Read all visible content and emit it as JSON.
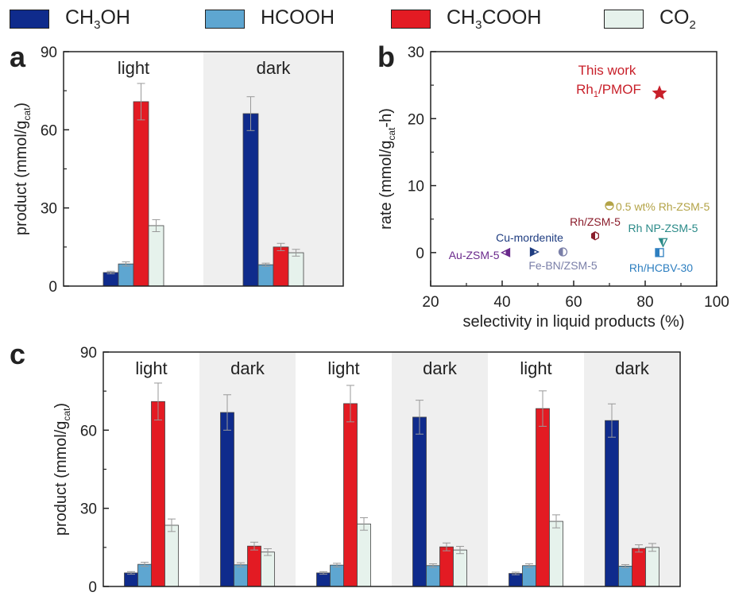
{
  "legend": [
    {
      "label": "CH3OH",
      "base": "CH",
      "sub": "3",
      "tail": "OH",
      "color": "#0f2b8c",
      "fill": "#0f2b8c"
    },
    {
      "label": "HCOOH",
      "base": "HCOOH",
      "sub": "",
      "tail": "",
      "color": "#5ea6d1",
      "fill": "#5ea6d1"
    },
    {
      "label": "CH3COOH",
      "base": "CH",
      "sub": "3",
      "tail": "COOH",
      "color": "#e31b23",
      "fill": "#e31b23"
    },
    {
      "label": "CO2",
      "base": "CO",
      "sub": "2",
      "tail": "",
      "color": "#e6f2ec",
      "fill": "#e6f2ec"
    }
  ],
  "chart_data": [
    {
      "panel": "a",
      "type": "bar",
      "ylabel": "product (mmol/g",
      "ylabel_sub": "cat",
      "ylabel_tail": ")",
      "ylim": [
        0,
        90
      ],
      "yticks": [
        0,
        30,
        60,
        90
      ],
      "groups": [
        {
          "label": "light",
          "shaded": false
        },
        {
          "label": "dark",
          "shaded": true
        }
      ],
      "series": [
        {
          "name": "CH3OH",
          "values": [
            5.2,
            66.2
          ],
          "errors": [
            0.5,
            6.5
          ]
        },
        {
          "name": "HCOOH",
          "values": [
            8.5,
            8.2
          ],
          "errors": [
            0.8,
            0.6
          ]
        },
        {
          "name": "CH3COOH",
          "values": [
            70.8,
            15.0
          ],
          "errors": [
            7.0,
            1.4
          ]
        },
        {
          "name": "CO2",
          "values": [
            23.2,
            12.8
          ],
          "errors": [
            2.3,
            1.3
          ]
        }
      ]
    },
    {
      "panel": "b",
      "type": "scatter",
      "xlabel": "selectivity in liquid products (%)",
      "ylabel": "rate (mmol/g",
      "ylabel_sub": "cat",
      "ylabel_tail": "-h)",
      "xlim": [
        20,
        100
      ],
      "ylim": [
        -5,
        30
      ],
      "xticks": [
        20,
        40,
        60,
        80,
        100
      ],
      "yticks": [
        0,
        10,
        20,
        30
      ],
      "points": [
        {
          "name": "This work Rh1/PMOF",
          "x": 84,
          "y": 23.8,
          "marker": "star",
          "color": "#c8202a"
        },
        {
          "name": "0.5 wt% Rh-ZSM-5",
          "x": 70,
          "y": 7.0,
          "marker": "half-top",
          "color": "#b3a347"
        },
        {
          "name": "Rh/ZSM-5",
          "x": 66,
          "y": 2.5,
          "marker": "half-hex",
          "color": "#8a1c2a"
        },
        {
          "name": "Rh NP-ZSM-5",
          "x": 85,
          "y": 1.5,
          "marker": "half-tri-down",
          "color": "#2a8a88"
        },
        {
          "name": "Cu-mordenite",
          "x": 49,
          "y": 0.1,
          "marker": "half-tri-right",
          "color": "#1e3c80"
        },
        {
          "name": "Fe-BN/ZSM-5",
          "x": 57,
          "y": 0.1,
          "marker": "half-circle",
          "color": "#7a7fa8"
        },
        {
          "name": "Au-ZSM-5",
          "x": 41,
          "y": 0.0,
          "marker": "half-tri-left",
          "color": "#6a2a8c"
        },
        {
          "name": "Rh/HCBV-30",
          "x": 84,
          "y": 0.0,
          "marker": "half-square",
          "color": "#2e7fc0"
        }
      ],
      "annotation_lines": [
        "This work",
        "Rh",
        "1",
        "/PMOF"
      ]
    },
    {
      "panel": "c",
      "type": "bar",
      "ylabel": "product (mmol/g",
      "ylabel_sub": "cat",
      "ylabel_tail": ")",
      "ylim": [
        0,
        90
      ],
      "yticks": [
        0,
        30,
        60,
        90
      ],
      "groups": [
        {
          "label": "light",
          "shaded": false
        },
        {
          "label": "dark",
          "shaded": true
        },
        {
          "label": "light",
          "shaded": false
        },
        {
          "label": "dark",
          "shaded": true
        },
        {
          "label": "light",
          "shaded": false
        },
        {
          "label": "dark",
          "shaded": true
        }
      ],
      "series": [
        {
          "name": "CH3OH",
          "values": [
            5.2,
            66.8,
            5.2,
            65.0,
            5.0,
            63.7
          ],
          "errors": [
            0.5,
            6.8,
            0.5,
            6.5,
            0.5,
            6.4
          ]
        },
        {
          "name": "HCOOH",
          "values": [
            8.5,
            8.3,
            8.2,
            8.0,
            8.0,
            7.8
          ],
          "errors": [
            0.8,
            0.8,
            0.7,
            0.7,
            0.7,
            0.6
          ]
        },
        {
          "name": "CH3COOH",
          "values": [
            71.0,
            15.5,
            70.2,
            15.2,
            68.3,
            14.6
          ],
          "errors": [
            7.1,
            1.5,
            7.0,
            1.5,
            6.8,
            1.4
          ]
        },
        {
          "name": "CO2",
          "values": [
            23.5,
            13.2,
            24.0,
            14.0,
            25.0,
            15.0
          ],
          "errors": [
            2.4,
            1.3,
            2.4,
            1.4,
            2.5,
            1.5
          ]
        }
      ]
    }
  ],
  "panel_letters": {
    "a": "a",
    "b": "b",
    "c": "c"
  }
}
